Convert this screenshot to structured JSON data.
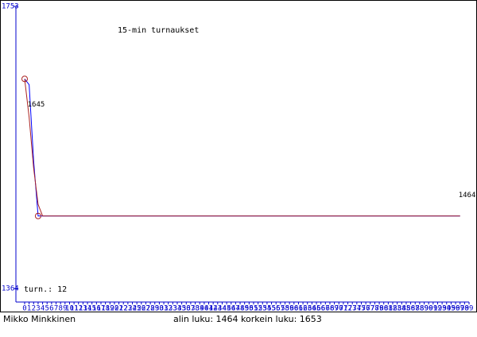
{
  "chart_data": {
    "type": "line",
    "title": "15-min turnaukset",
    "count_label": "turn.: 12",
    "author": "Mikko Minkkinen",
    "summary": "alin luku: 1464  korkein luku: 1653",
    "ylim": [
      1364,
      1753
    ],
    "yticks": [
      1364,
      1753
    ],
    "xlim": [
      0,
      99
    ],
    "xticks": [
      0,
      1,
      2,
      3,
      4,
      5,
      6,
      7,
      8,
      9,
      10,
      11,
      12,
      13,
      14,
      15,
      16,
      17,
      18,
      19,
      20,
      21,
      22,
      23,
      24,
      25,
      26,
      27,
      28,
      29,
      30,
      31,
      32,
      33,
      34,
      35,
      36,
      37,
      38,
      39,
      40,
      41,
      42,
      43,
      44,
      45,
      46,
      47,
      48,
      49,
      50,
      51,
      52,
      53,
      54,
      55,
      56,
      57,
      58,
      59,
      60,
      61,
      62,
      63,
      64,
      65,
      66,
      67,
      68,
      69,
      70,
      71,
      72,
      73,
      74,
      75,
      76,
      77,
      78,
      79,
      80,
      81,
      82,
      83,
      84,
      85,
      86,
      87,
      88,
      89,
      90,
      91,
      92,
      93,
      94,
      95,
      96,
      97,
      98,
      99
    ],
    "axis_color": "#0000cc",
    "series": [
      {
        "color": "#0000ff",
        "x": [
          0,
          1,
          2,
          3,
          97
        ],
        "values": [
          1653,
          1645,
          1540,
          1464,
          1464
        ],
        "labeled": [
          1,
          4
        ]
      },
      {
        "color": "#aa2222",
        "x": [
          0,
          1,
          2,
          3,
          4,
          97
        ],
        "values": [
          1653,
          1600,
          1530,
          1480,
          1464,
          1464
        ]
      }
    ]
  }
}
